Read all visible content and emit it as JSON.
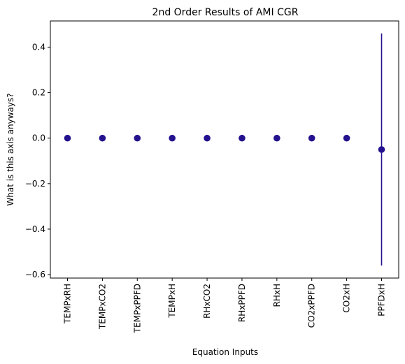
{
  "chart_data": {
    "type": "scatter",
    "title": "2nd Order Results of AMI CGR",
    "xlabel": "Equation Inputs",
    "ylabel": "What is this axis anyways?",
    "categories": [
      "TEMPxRH",
      "TEMPxCO2",
      "TEMPxPPFD",
      "TEMPxH",
      "RHxCO2",
      "RHxPPFD",
      "RHxH",
      "CO2xPPFD",
      "CO2xH",
      "PPFDxH"
    ],
    "values": [
      0.0,
      0.0,
      0.0,
      0.0,
      0.0,
      0.0,
      0.0,
      0.0,
      0.0,
      -0.05
    ],
    "error_low": [
      0.0,
      0.0,
      0.0,
      0.0,
      0.0,
      0.0,
      0.0,
      0.0,
      0.0,
      -0.56
    ],
    "error_high": [
      0.0,
      0.0,
      0.0,
      0.0,
      0.0,
      0.0,
      0.0,
      0.0,
      0.0,
      0.46
    ],
    "ylim": [
      -0.615,
      0.515
    ],
    "yticks": [
      -0.6,
      -0.4,
      -0.2,
      0.0,
      0.2,
      0.4
    ],
    "ytick_labels": [
      "−0.6",
      "−0.4",
      "−0.2",
      "0.0",
      "0.2",
      "0.4"
    ],
    "grid": false,
    "marker_color": "#23118e",
    "errorbar_color": "#23118e"
  }
}
